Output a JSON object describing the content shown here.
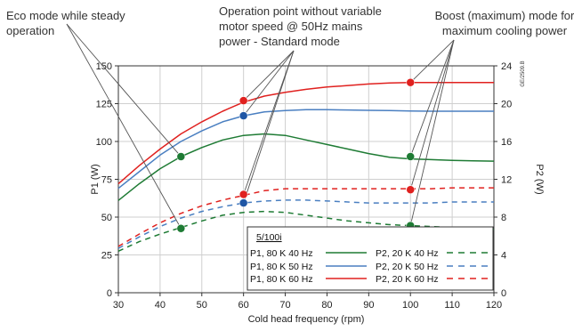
{
  "annotations": {
    "eco": "Eco mode while steady\noperation",
    "standard": "Operation point without variable\nmotor speed @ 50Hz mains\npower - Standard mode",
    "boost": "Boost (maximum) mode for\nmaximum cooling power"
  },
  "figure_code": "GE/2509.B",
  "chart_data": {
    "type": "line",
    "xlabel": "Cold head frequency (rpm)",
    "ylabel_left": "P1 (W)",
    "ylabel_right": "P2 (W)",
    "xlim": [
      30,
      120
    ],
    "ylim_left": [
      0,
      150
    ],
    "ylim_right": [
      0,
      24
    ],
    "x_ticks": [
      30,
      40,
      50,
      60,
      70,
      80,
      90,
      100,
      110,
      120
    ],
    "y_ticks_left": [
      0,
      25,
      50,
      75,
      100,
      125,
      150
    ],
    "y_ticks_right": [
      0,
      4,
      8,
      12,
      16,
      20,
      24
    ],
    "legend_title": "5/100i",
    "legend_position": "bottom-right",
    "grid": true,
    "series": [
      {
        "name": "P1, 80 K  40 Hz",
        "axis": "left",
        "color": "#1e7b34",
        "dash": "solid",
        "x": [
          30,
          35,
          40,
          45,
          50,
          55,
          60,
          65,
          70,
          75,
          80,
          85,
          90,
          95,
          100,
          105,
          110,
          115,
          120
        ],
        "y": [
          61,
          72,
          82,
          90,
          96,
          101,
          104,
          105,
          104,
          101,
          98,
          95,
          92,
          89.5,
          88.5,
          88,
          87.5,
          87.2,
          87
        ]
      },
      {
        "name": "P1, 80 K  50 Hz",
        "axis": "left",
        "color": "#4a7fc1",
        "dash": "solid",
        "x": [
          30,
          35,
          40,
          45,
          50,
          55,
          60,
          65,
          70,
          75,
          80,
          85,
          90,
          95,
          100,
          105,
          110,
          115,
          120
        ],
        "y": [
          69,
          80,
          91,
          100,
          107,
          113,
          117,
          119.5,
          120.5,
          121,
          121,
          120.8,
          120.6,
          120.4,
          120.2,
          120,
          120,
          120,
          120
        ]
      },
      {
        "name": "P1, 80 K  60 Hz",
        "axis": "left",
        "color": "#e0211f",
        "dash": "solid",
        "x": [
          30,
          35,
          40,
          45,
          50,
          55,
          60,
          65,
          70,
          75,
          80,
          85,
          90,
          95,
          100,
          105,
          110,
          115,
          120
        ],
        "y": [
          72,
          84,
          95,
          105,
          113,
          120,
          126,
          130,
          132.5,
          134.5,
          136,
          137,
          138,
          138.7,
          139,
          139,
          139,
          139,
          139
        ]
      },
      {
        "name": "P2, 20 K  40 Hz",
        "axis": "right",
        "color": "#1e7b34",
        "dash": "dashed",
        "x": [
          30,
          35,
          40,
          45,
          50,
          55,
          60,
          65,
          70,
          75,
          80,
          85,
          90,
          95,
          100,
          105,
          110,
          115,
          120
        ],
        "y": [
          4.4,
          5.4,
          6.2,
          6.9,
          7.6,
          8.2,
          8.5,
          8.6,
          8.5,
          8.2,
          7.9,
          7.6,
          7.4,
          7.2,
          7.1,
          7.0,
          6.9,
          6.8,
          6.7
        ]
      },
      {
        "name": "P2, 20 K  50 Hz",
        "axis": "right",
        "color": "#4a7fc1",
        "dash": "dashed",
        "x": [
          30,
          35,
          40,
          45,
          50,
          55,
          60,
          65,
          70,
          75,
          80,
          85,
          90,
          95,
          100,
          105,
          110,
          115,
          120
        ],
        "y": [
          4.7,
          5.9,
          7.0,
          7.9,
          8.6,
          9.1,
          9.5,
          9.7,
          9.8,
          9.8,
          9.7,
          9.6,
          9.5,
          9.5,
          9.5,
          9.5,
          9.6,
          9.6,
          9.6
        ]
      },
      {
        "name": "P2, 20 K  60 Hz",
        "axis": "right",
        "color": "#e0211f",
        "dash": "dashed",
        "x": [
          30,
          35,
          40,
          45,
          50,
          55,
          60,
          65,
          70,
          75,
          80,
          85,
          90,
          95,
          100,
          105,
          110,
          115,
          120
        ],
        "y": [
          4.9,
          6.2,
          7.4,
          8.4,
          9.2,
          9.8,
          10.3,
          10.8,
          11.0,
          11.0,
          11.0,
          11.0,
          11.0,
          11.0,
          11.0,
          11.0,
          11.1,
          11.1,
          11.1
        ]
      }
    ],
    "markers": [
      {
        "group": "eco",
        "axis": "left",
        "x": 45,
        "y": 90,
        "color": "#1e7b34"
      },
      {
        "group": "eco",
        "axis": "right",
        "x": 45,
        "y": 6.8,
        "color": "#1e7b34"
      },
      {
        "group": "standard",
        "axis": "left",
        "x": 60,
        "y": 117,
        "color": "#1f56a5"
      },
      {
        "group": "standard",
        "axis": "right",
        "x": 60,
        "y": 9.5,
        "color": "#1f56a5"
      },
      {
        "group": "standard",
        "axis": "left",
        "x": 60,
        "y": 127,
        "color": "#e0211f"
      },
      {
        "group": "standard",
        "axis": "right",
        "x": 60,
        "y": 10.4,
        "color": "#e0211f"
      },
      {
        "group": "boost",
        "axis": "left",
        "x": 100,
        "y": 139,
        "color": "#e0211f"
      },
      {
        "group": "boost",
        "axis": "right",
        "x": 100,
        "y": 10.9,
        "color": "#e0211f"
      },
      {
        "group": "boost",
        "axis": "left",
        "x": 100,
        "y": 90,
        "color": "#1e7b34"
      },
      {
        "group": "boost",
        "axis": "right",
        "x": 100,
        "y": 7.1,
        "color": "#1e7b34"
      }
    ]
  }
}
